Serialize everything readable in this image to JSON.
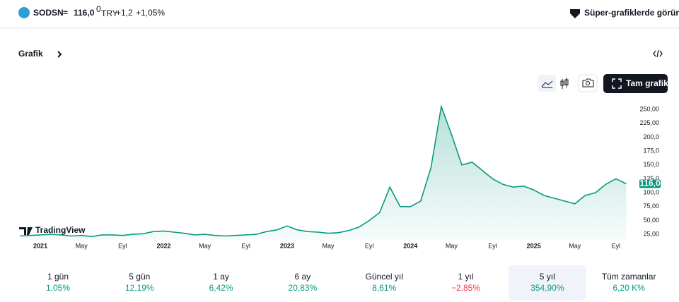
{
  "header": {
    "symbol": "SODSN",
    "separator": "=",
    "price": "116,0",
    "price_fraction": "0",
    "currency": "TRY",
    "change": "+1,2",
    "change_pct": "+1,05%",
    "super_charts": "Süper-grafiklerde görün"
  },
  "section": {
    "title": "Grafik",
    "full_chart": "Tam grafik",
    "watermark": "TradingView"
  },
  "chart_data": {
    "type": "area",
    "x": [
      "2020-11",
      "2020-12",
      "2021-01",
      "2021-02",
      "2021-03",
      "2021-04",
      "2021-05",
      "2021-06",
      "2021-07",
      "2021-08",
      "2021-09",
      "2021-10",
      "2021-11",
      "2021-12",
      "2022-01",
      "2022-02",
      "2022-03",
      "2022-04",
      "2022-05",
      "2022-06",
      "2022-07",
      "2022-08",
      "2022-09",
      "2022-10",
      "2022-11",
      "2022-12",
      "2023-01",
      "2023-02",
      "2023-03",
      "2023-04",
      "2023-05",
      "2023-06",
      "2023-07",
      "2023-08",
      "2023-09",
      "2023-10",
      "2023-11",
      "2023-12",
      "2024-01",
      "2024-02",
      "2024-03",
      "2024-04",
      "2024-05",
      "2024-06",
      "2024-07",
      "2024-08",
      "2024-09",
      "2024-10",
      "2024-11",
      "2024-12",
      "2025-01",
      "2025-02",
      "2025-03",
      "2025-04",
      "2025-05",
      "2025-06",
      "2025-07",
      "2025-08",
      "2025-09",
      "2025-10"
    ],
    "values": [
      22,
      23,
      24,
      25,
      24,
      22,
      23,
      21,
      24,
      24,
      23,
      25,
      26,
      30,
      31,
      29,
      27,
      24,
      25,
      23,
      22,
      23,
      24,
      25,
      30,
      33,
      40,
      33,
      30,
      29,
      27,
      28,
      32,
      38,
      50,
      64,
      110,
      75,
      75,
      85,
      145,
      255,
      205,
      150,
      155,
      140,
      125,
      115,
      110,
      112,
      105,
      95,
      90,
      85,
      80,
      95,
      100,
      115,
      125,
      116
    ],
    "color": "#089981",
    "xlim": [
      "2020-11",
      "2025-11"
    ],
    "xticks": [
      {
        "value": "2021-01",
        "label": "2021"
      },
      {
        "value": "2021-05",
        "label": "May"
      },
      {
        "value": "2021-09",
        "label": "Eyl"
      },
      {
        "value": "2022-01",
        "label": "2022"
      },
      {
        "value": "2022-05",
        "label": "May"
      },
      {
        "value": "2022-09",
        "label": "Eyl"
      },
      {
        "value": "2023-01",
        "label": "2023"
      },
      {
        "value": "2023-05",
        "label": "May"
      },
      {
        "value": "2023-09",
        "label": "Eyl"
      },
      {
        "value": "2024-01",
        "label": "2024"
      },
      {
        "value": "2024-05",
        "label": "May"
      },
      {
        "value": "2024-09",
        "label": "Eyl"
      },
      {
        "value": "2025-01",
        "label": "2025"
      },
      {
        "value": "2025-05",
        "label": "May"
      },
      {
        "value": "2025-09",
        "label": "Eyl"
      }
    ],
    "ylim": [
      15,
      259
    ],
    "yticks": [
      {
        "value": 25,
        "label": "25,00"
      },
      {
        "value": 50,
        "label": "50,00"
      },
      {
        "value": 75,
        "label": "75,00"
      },
      {
        "value": 100,
        "label": "100,0"
      },
      {
        "value": 125,
        "label": "125,0"
      },
      {
        "value": 150,
        "label": "150,0"
      },
      {
        "value": 175,
        "label": "175,0"
      },
      {
        "value": 200,
        "label": "200,0"
      },
      {
        "value": 225,
        "label": "225,00"
      },
      {
        "value": 250,
        "label": "250,00"
      }
    ],
    "last_price": {
      "value": 116,
      "label": "116,0"
    }
  },
  "periods": [
    {
      "label": "1 gün",
      "value": "1,05%"
    },
    {
      "label": "5 gün",
      "value": "12,19%"
    },
    {
      "label": "1 ay",
      "value": "6,42%"
    },
    {
      "label": "6 ay",
      "value": "20,83%"
    },
    {
      "label": "Güncel yıl",
      "value": "8,61%"
    },
    {
      "label": "1 yıl",
      "value": "−2,85%"
    },
    {
      "label": "5 yıl",
      "value": "354,90%"
    },
    {
      "label": "Tüm zamanlar",
      "value": "6,20 K%"
    }
  ],
  "selected_period": 6
}
